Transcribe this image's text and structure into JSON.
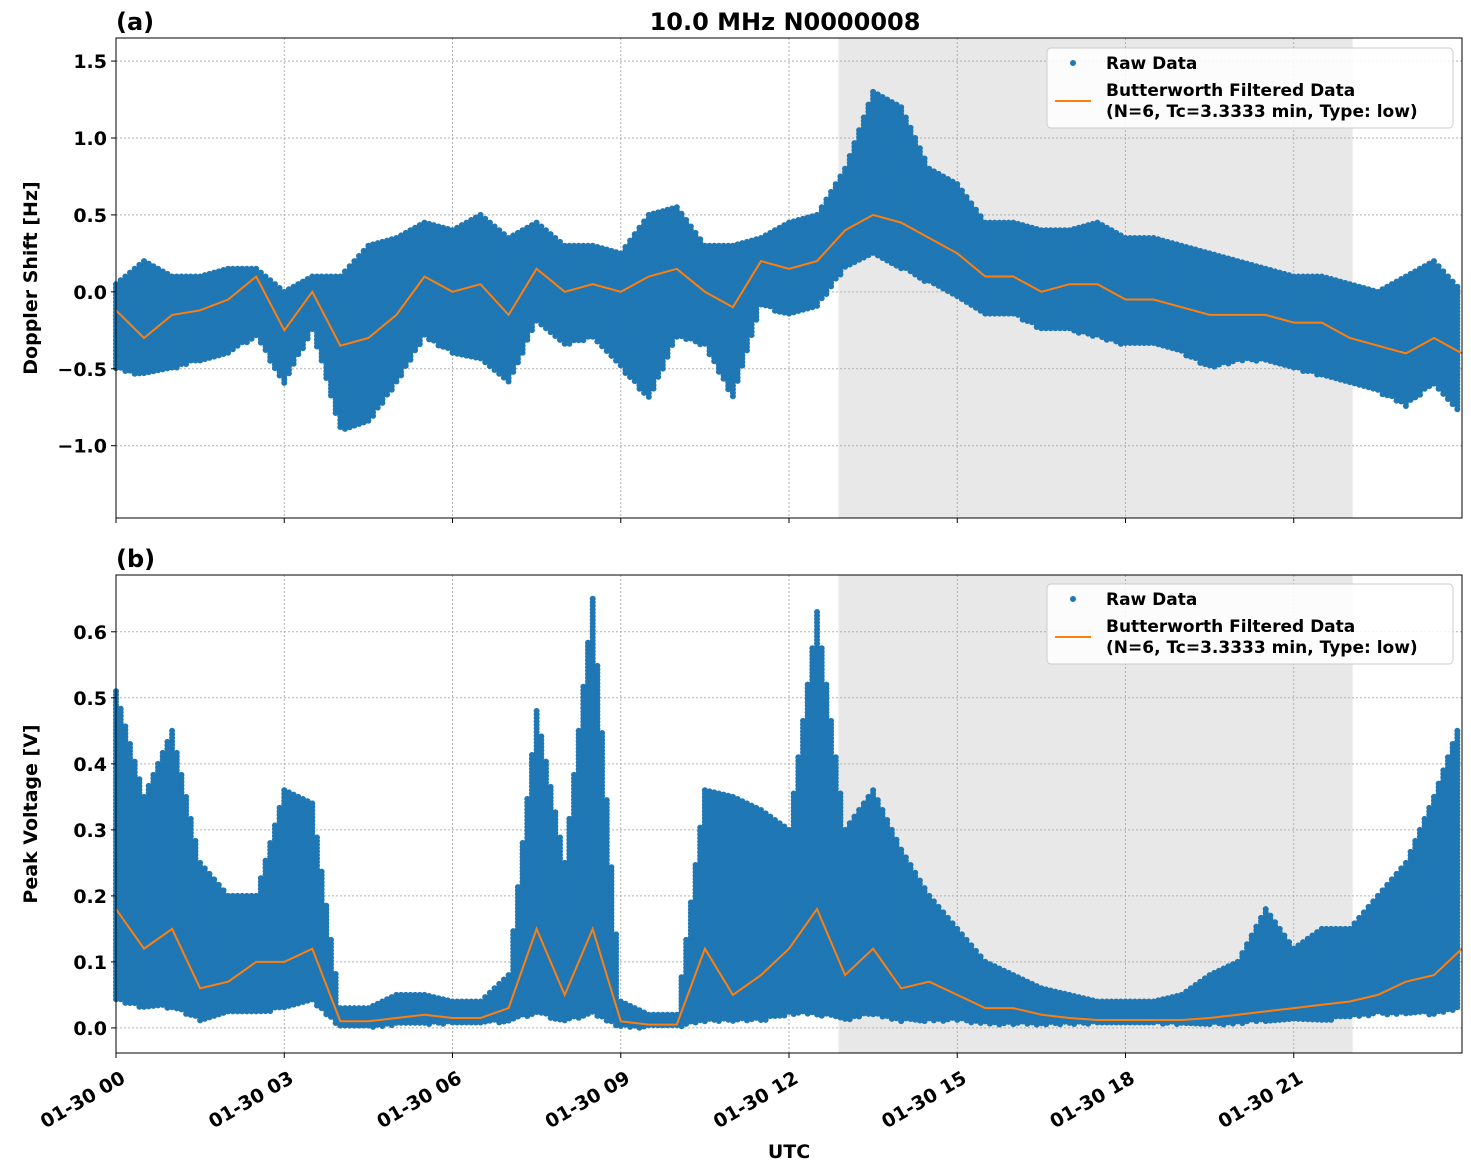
{
  "figure": {
    "title": "10.0 MHz N0000008",
    "xlabel": "UTC",
    "x_ticks": [
      "01-30 00",
      "01-30 03",
      "01-30 06",
      "01-30 09",
      "01-30 12",
      "01-30 15",
      "01-30 18",
      "01-30 21"
    ],
    "x_tick_hours": [
      0,
      3,
      6,
      9,
      12,
      15,
      18,
      21
    ],
    "xlim": [
      "01-30 00:00",
      "01-31 00:00"
    ],
    "shaded_span": [
      "01-30 12:53",
      "01-30 22:03"
    ],
    "colors": {
      "raw": "#1f77b4",
      "filtered": "#ff7f0e",
      "shade": "#e8e8e8",
      "grid": "#b0b0b0"
    },
    "legend": {
      "raw_label": "Raw Data",
      "filtered_label_1": "Butterworth Filtered Data",
      "filtered_label_2": "(N=6, Tc=3.3333 min, Type: low)",
      "placement": "top-right"
    }
  },
  "chart_data": [
    {
      "type": "scatter+line",
      "panel_label": "(a)",
      "ylabel": "Doppler Shift [Hz]",
      "ylim": [
        -1.47,
        1.65
      ],
      "y_ticks": [
        1.5,
        1.0,
        0.5,
        0.0,
        -0.5,
        -1.0
      ],
      "y_tick_labels": [
        "1.5",
        "1.0",
        "0.5",
        "0.0",
        "−0.5",
        "−1.0"
      ],
      "grid": true,
      "x_hours_utc_0130": [
        0,
        0.5,
        1,
        1.5,
        2,
        2.5,
        3,
        3.5,
        4,
        4.5,
        5,
        5.5,
        6,
        6.5,
        7,
        7.5,
        8,
        8.5,
        9,
        9.5,
        10,
        10.5,
        11,
        11.5,
        12,
        12.5,
        13,
        13.5,
        14,
        14.5,
        15,
        15.5,
        16,
        16.5,
        17,
        17.5,
        18,
        18.5,
        19,
        19.5,
        20,
        20.5,
        21,
        21.5,
        22,
        22.5,
        23,
        23.5,
        24
      ],
      "series": [
        {
          "name": "Butterworth Filtered Data",
          "kind": "line",
          "values": [
            -0.12,
            -0.3,
            -0.15,
            -0.12,
            -0.05,
            0.1,
            -0.25,
            0.0,
            -0.35,
            -0.3,
            -0.15,
            0.1,
            0.0,
            0.05,
            -0.15,
            0.15,
            0.0,
            0.05,
            0.0,
            0.1,
            0.15,
            0.0,
            -0.1,
            0.2,
            0.15,
            0.2,
            0.4,
            0.5,
            0.45,
            0.35,
            0.25,
            0.1,
            0.1,
            0.0,
            0.05,
            0.05,
            -0.05,
            -0.05,
            -0.1,
            -0.15,
            -0.15,
            -0.15,
            -0.2,
            -0.2,
            -0.3,
            -0.35,
            -0.4,
            -0.3,
            -0.4
          ]
        },
        {
          "name": "Raw Data",
          "kind": "scatter-envelope",
          "low": [
            -0.5,
            -0.55,
            -0.5,
            -0.45,
            -0.4,
            -0.3,
            -0.6,
            -0.25,
            -0.9,
            -0.85,
            -0.6,
            -0.3,
            -0.4,
            -0.45,
            -0.6,
            -0.2,
            -0.35,
            -0.3,
            -0.5,
            -0.7,
            -0.3,
            -0.35,
            -0.7,
            -0.1,
            -0.15,
            -0.1,
            0.15,
            0.25,
            0.15,
            0.05,
            -0.05,
            -0.15,
            -0.15,
            -0.25,
            -0.25,
            -0.3,
            -0.35,
            -0.35,
            -0.4,
            -0.5,
            -0.45,
            -0.45,
            -0.5,
            -0.55,
            -0.6,
            -0.65,
            -0.75,
            -0.6,
            -0.8
          ],
          "high": [
            0.05,
            0.2,
            0.1,
            0.1,
            0.15,
            0.15,
            0.0,
            0.1,
            0.1,
            0.3,
            0.35,
            0.45,
            0.4,
            0.5,
            0.35,
            0.45,
            0.3,
            0.3,
            0.25,
            0.5,
            0.55,
            0.3,
            0.3,
            0.35,
            0.45,
            0.5,
            0.8,
            1.3,
            1.2,
            0.8,
            0.7,
            0.45,
            0.45,
            0.4,
            0.4,
            0.45,
            0.35,
            0.35,
            0.3,
            0.25,
            0.2,
            0.15,
            0.1,
            0.1,
            0.05,
            0.0,
            0.1,
            0.2,
            0.0
          ]
        }
      ]
    },
    {
      "type": "scatter+line",
      "panel_label": "(b)",
      "ylabel": "Peak Voltage [V]",
      "ylim": [
        -0.038,
        0.686
      ],
      "y_ticks": [
        0.6,
        0.5,
        0.4,
        0.3,
        0.2,
        0.1,
        0.0
      ],
      "y_tick_labels": [
        "0.6",
        "0.5",
        "0.4",
        "0.3",
        "0.2",
        "0.1",
        "0.0"
      ],
      "grid": true,
      "x_hours_utc_0130": [
        0,
        0.5,
        1,
        1.5,
        2,
        2.5,
        3,
        3.5,
        4,
        4.5,
        5,
        5.5,
        6,
        6.5,
        7,
        7.5,
        8,
        8.5,
        9,
        9.5,
        10,
        10.5,
        11,
        11.5,
        12,
        12.5,
        13,
        13.5,
        14,
        14.5,
        15,
        15.5,
        16,
        16.5,
        17,
        17.5,
        18,
        18.5,
        19,
        19.5,
        20,
        20.5,
        21,
        21.5,
        22,
        22.5,
        23,
        23.5,
        24
      ],
      "series": [
        {
          "name": "Butterworth Filtered Data",
          "kind": "line",
          "values": [
            0.18,
            0.12,
            0.15,
            0.06,
            0.07,
            0.1,
            0.1,
            0.12,
            0.01,
            0.01,
            0.015,
            0.02,
            0.015,
            0.015,
            0.03,
            0.15,
            0.05,
            0.15,
            0.01,
            0.005,
            0.005,
            0.12,
            0.05,
            0.08,
            0.12,
            0.18,
            0.08,
            0.12,
            0.06,
            0.07,
            0.05,
            0.03,
            0.03,
            0.02,
            0.015,
            0.012,
            0.012,
            0.012,
            0.012,
            0.015,
            0.02,
            0.025,
            0.03,
            0.035,
            0.04,
            0.05,
            0.07,
            0.08,
            0.12
          ]
        },
        {
          "name": "Raw Data",
          "kind": "scatter-envelope",
          "low": [
            0.04,
            0.03,
            0.03,
            0.01,
            0.02,
            0.02,
            0.03,
            0.04,
            0.0,
            0.0,
            0.005,
            0.005,
            0.005,
            0.005,
            0.01,
            0.02,
            0.01,
            0.02,
            0.0,
            0.0,
            0.0,
            0.01,
            0.01,
            0.01,
            0.02,
            0.02,
            0.01,
            0.02,
            0.01,
            0.01,
            0.01,
            0.005,
            0.005,
            0.005,
            0.005,
            0.005,
            0.005,
            0.005,
            0.005,
            0.005,
            0.005,
            0.01,
            0.01,
            0.01,
            0.015,
            0.02,
            0.02,
            0.02,
            0.03
          ],
          "high": [
            0.51,
            0.35,
            0.45,
            0.25,
            0.2,
            0.2,
            0.36,
            0.34,
            0.03,
            0.03,
            0.05,
            0.05,
            0.04,
            0.04,
            0.08,
            0.48,
            0.25,
            0.65,
            0.04,
            0.02,
            0.02,
            0.36,
            0.35,
            0.33,
            0.3,
            0.63,
            0.3,
            0.36,
            0.27,
            0.2,
            0.15,
            0.1,
            0.08,
            0.06,
            0.05,
            0.04,
            0.04,
            0.04,
            0.05,
            0.08,
            0.1,
            0.18,
            0.12,
            0.15,
            0.15,
            0.2,
            0.25,
            0.35,
            0.47
          ]
        }
      ]
    }
  ]
}
